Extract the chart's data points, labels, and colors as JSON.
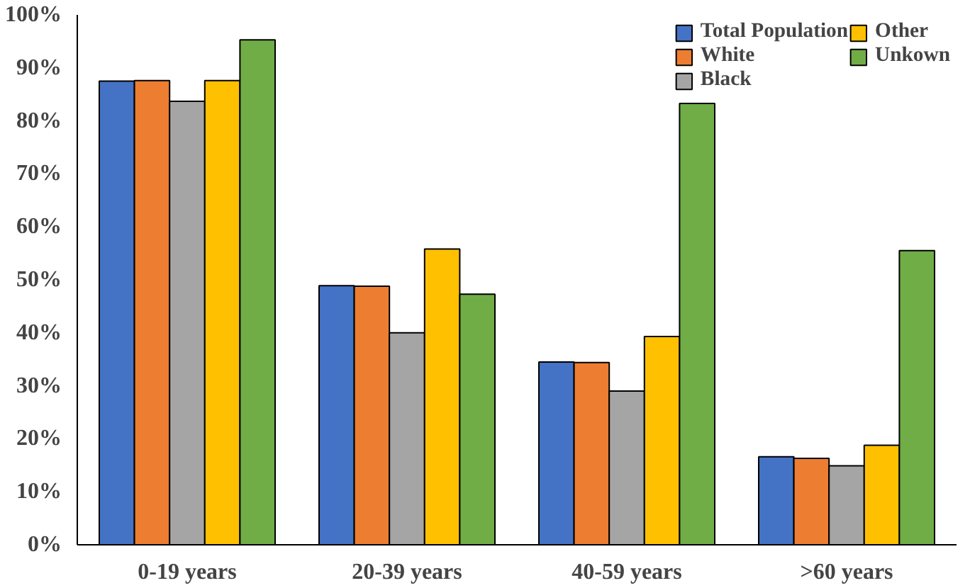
{
  "chart_data": {
    "type": "bar",
    "categories": [
      "0-19 years",
      "20-39 years",
      "40-59 years",
      ">60 years"
    ],
    "series": [
      {
        "name": "Total Population",
        "color": "#4472c4",
        "values": [
          87.5,
          48.9,
          34.5,
          16.6
        ]
      },
      {
        "name": "White",
        "color": "#ed7d31",
        "values": [
          87.6,
          48.8,
          34.4,
          16.3
        ]
      },
      {
        "name": "Black",
        "color": "#a5a5a5",
        "values": [
          83.7,
          40,
          29,
          14.9
        ]
      },
      {
        "name": "Other",
        "color": "#ffc000",
        "values": [
          87.6,
          55.8,
          39.3,
          18.8
        ]
      },
      {
        "name": "Unkown",
        "color": "#70ad47",
        "values": [
          95.3,
          47.3,
          83.3,
          55.5
        ]
      }
    ],
    "ylim": [
      0,
      100
    ],
    "yticks": [
      {
        "value": 0,
        "label": "0%"
      },
      {
        "value": 10,
        "label": "10%"
      },
      {
        "value": 20,
        "label": "20%"
      },
      {
        "value": 30,
        "label": "30%"
      },
      {
        "value": 40,
        "label": "40%"
      },
      {
        "value": 50,
        "label": "50%"
      },
      {
        "value": 60,
        "label": "60%"
      },
      {
        "value": 70,
        "label": "70%"
      },
      {
        "value": 80,
        "label": "80%"
      },
      {
        "value": 90,
        "label": "90%"
      },
      {
        "value": 100,
        "label": "100%"
      }
    ],
    "grid": false,
    "legend": "top right"
  }
}
